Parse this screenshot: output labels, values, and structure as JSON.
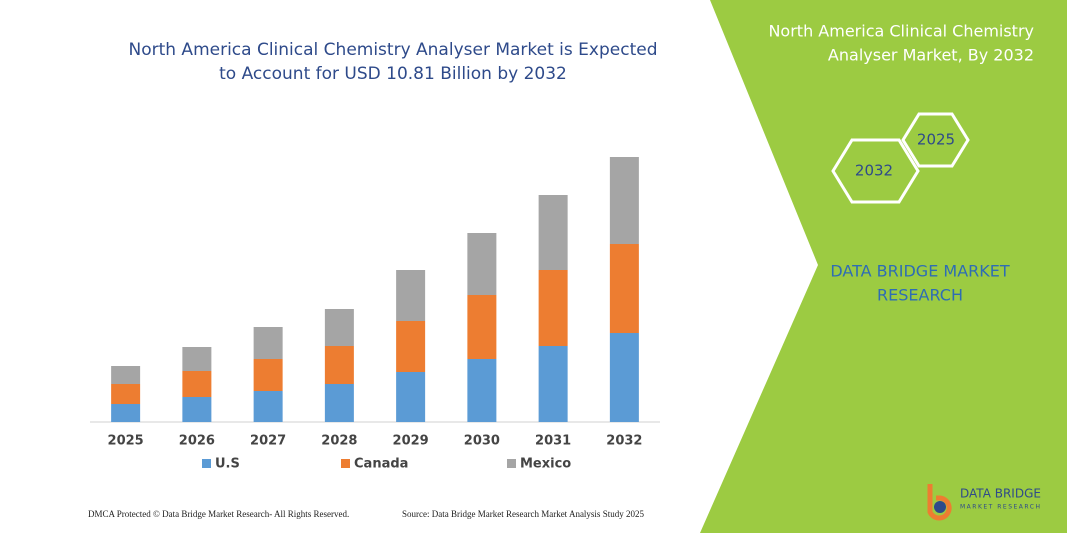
{
  "chart_data": {
    "type": "bar",
    "stacked": true,
    "title": [
      "North America Clinical Chemistry Analyser Market is Expected",
      "to Account for USD 10.81 Billion by 2032"
    ],
    "categories": [
      "2025",
      "2026",
      "2027",
      "2028",
      "2029",
      "2030",
      "2031",
      "2032"
    ],
    "series": [
      {
        "name": "U.S",
        "color": "#5b9bd5",
        "values": [
          18,
          25,
          31,
          38,
          50,
          63,
          76,
          89
        ]
      },
      {
        "name": "Canada",
        "color": "#ed7d31",
        "values": [
          20,
          26,
          32,
          38,
          51,
          64,
          76,
          89
        ]
      },
      {
        "name": "Mexico",
        "color": "#a5a5a5",
        "values": [
          18,
          24,
          32,
          37,
          51,
          62,
          75,
          87
        ]
      }
    ],
    "ylim": [
      0,
      270
    ]
  },
  "panel": {
    "title": [
      "North America Clinical Chemistry",
      "Analyser Market, By 2032"
    ],
    "hexagons": [
      "2025",
      "2032"
    ],
    "brand": [
      "DATA BRIDGE MARKET",
      "RESEARCH"
    ]
  },
  "footer": {
    "left": "DMCA Protected © Data Bridge Market Research- All Rights Reserved.",
    "right": "Source: Data Bridge Market Research Market Analysis Study 2025"
  },
  "logo": {
    "name": "DATA BRIDGE",
    "tagline": "MARKET RESEARCH"
  }
}
